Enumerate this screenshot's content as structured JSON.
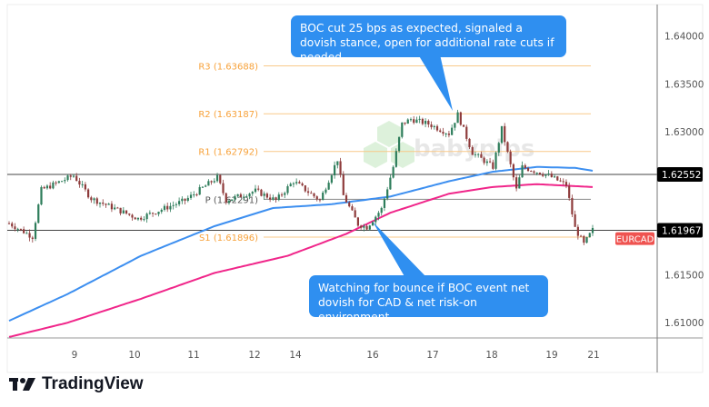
{
  "chart_data": {
    "type": "candlestick",
    "symbol": "EURCAD",
    "ylim": [
      1.6084,
      1.6433
    ],
    "y_ticks": [
      "1.64000",
      "1.63500",
      "1.63000",
      "1.61500",
      "1.61000"
    ],
    "x_ticks": [
      "9",
      "10",
      "11",
      "12",
      "14",
      "16",
      "17",
      "18",
      "19",
      "21"
    ],
    "price_labels": [
      {
        "value": "1.62552",
        "price": 1.62552
      },
      {
        "value": "1.61967",
        "price": 1.61967
      }
    ],
    "symbol_tag": "EURCAD",
    "pivots": [
      {
        "label": "R3 (1.63688)",
        "price": 1.63688,
        "color": "#f7a23b"
      },
      {
        "label": "R2 (1.63187)",
        "price": 1.63187,
        "color": "#f7a23b"
      },
      {
        "label": "R1 (1.62792)",
        "price": 1.62792,
        "color": "#f7a23b"
      },
      {
        "label": "P (1.62291)",
        "price": 1.62291,
        "color": "#555555"
      },
      {
        "label": "S1 (1.61896)",
        "price": 1.61896,
        "color": "#f7a23b"
      }
    ],
    "price_path": [
      [
        0,
        1.6204
      ],
      [
        8,
        1.619
      ],
      [
        11,
        1.6239
      ],
      [
        22,
        1.6254
      ],
      [
        28,
        1.623
      ],
      [
        44,
        1.6209
      ],
      [
        60,
        1.6228
      ],
      [
        71,
        1.6252
      ],
      [
        74,
        1.6228
      ],
      [
        84,
        1.6238
      ],
      [
        91,
        1.6228
      ],
      [
        97,
        1.6248
      ],
      [
        106,
        1.6228
      ],
      [
        112,
        1.6271
      ],
      [
        114,
        1.6233
      ],
      [
        119,
        1.6203
      ],
      [
        122,
        1.62
      ],
      [
        127,
        1.6219
      ],
      [
        131,
        1.6263
      ],
      [
        134,
        1.6308
      ],
      [
        137,
        1.6313
      ],
      [
        143,
        1.6308
      ],
      [
        150,
        1.6298
      ],
      [
        153,
        1.6318
      ],
      [
        158,
        1.6278
      ],
      [
        165,
        1.6263
      ],
      [
        168,
        1.6303
      ],
      [
        173,
        1.6239
      ],
      [
        175,
        1.6263
      ],
      [
        184,
        1.6254
      ],
      [
        190,
        1.6244
      ],
      [
        193,
        1.6199
      ],
      [
        196,
        1.6182
      ],
      [
        199,
        1.6197
      ]
    ],
    "series": [
      {
        "color": "#3d8ff0",
        "path": [
          [
            0,
            1.6102
          ],
          [
            20,
            1.613
          ],
          [
            45,
            1.617
          ],
          [
            70,
            1.6201
          ],
          [
            90,
            1.622
          ],
          [
            110,
            1.6224
          ],
          [
            130,
            1.6232
          ],
          [
            150,
            1.6248
          ],
          [
            165,
            1.6258
          ],
          [
            180,
            1.6263
          ],
          [
            193,
            1.6262
          ],
          [
            199,
            1.6259
          ]
        ]
      },
      {
        "color": "#f0268a",
        "path": [
          [
            0,
            1.6085
          ],
          [
            20,
            1.61
          ],
          [
            45,
            1.6125
          ],
          [
            70,
            1.6152
          ],
          [
            95,
            1.617
          ],
          [
            115,
            1.6193
          ],
          [
            130,
            1.6215
          ],
          [
            150,
            1.6235
          ],
          [
            165,
            1.6242
          ],
          [
            180,
            1.6245
          ],
          [
            199,
            1.6242
          ]
        ]
      }
    ],
    "colors": {
      "up": "#2e7d5b",
      "down": "#8e3b3b"
    }
  },
  "annotations": {
    "top": "BOC cut 25 bps as expected, signaled a dovish stance, open for additional rate cuts if needed",
    "bottom": "Watching for bounce if BOC event net dovish for CAD & net risk-on environment"
  },
  "watermark": "babypips",
  "brand": "TradingView"
}
